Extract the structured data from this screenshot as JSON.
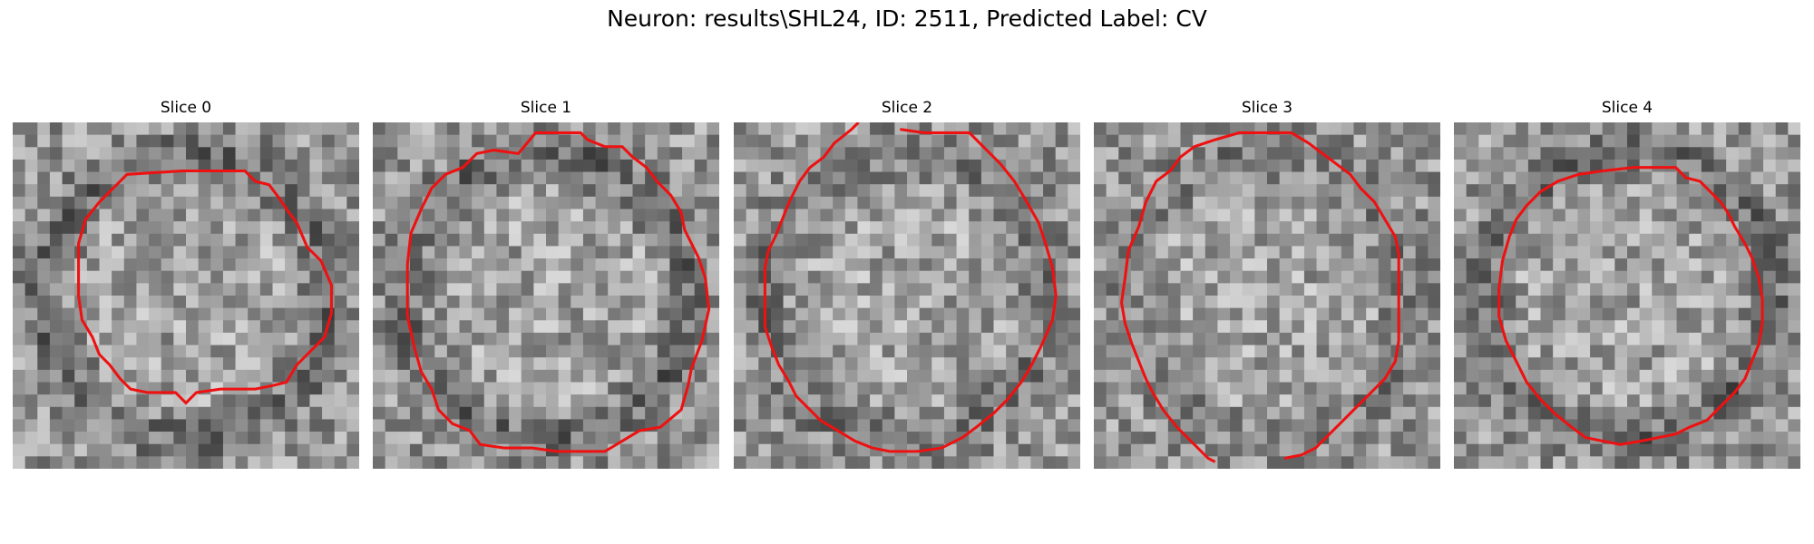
{
  "figure": {
    "title": "Neuron: results\\SHL24, ID: 2511, Predicted Label: CV"
  },
  "panels": [
    {
      "title": "Slice 0",
      "seed": 11,
      "dark_ring": 0.55,
      "contour": [
        [
          9.8,
          2.8
        ],
        [
          13.4,
          2.8
        ],
        [
          14.0,
          3.4
        ],
        [
          14.8,
          3.6
        ],
        [
          15.4,
          4.4
        ],
        [
          15.8,
          5.0
        ],
        [
          16.4,
          5.8
        ],
        [
          17.0,
          7.2
        ],
        [
          17.8,
          8.0
        ],
        [
          18.4,
          9.4
        ],
        [
          18.4,
          11.0
        ],
        [
          18.0,
          12.4
        ],
        [
          17.4,
          13.0
        ],
        [
          16.4,
          14.0
        ],
        [
          15.8,
          15.0
        ],
        [
          15.0,
          15.2
        ],
        [
          14.0,
          15.4
        ],
        [
          12.0,
          15.4
        ],
        [
          10.6,
          15.6
        ],
        [
          10.0,
          16.2
        ],
        [
          9.4,
          15.6
        ],
        [
          7.8,
          15.6
        ],
        [
          6.8,
          15.4
        ],
        [
          6.2,
          14.8
        ],
        [
          5.6,
          14.0
        ],
        [
          5.0,
          13.4
        ],
        [
          4.6,
          12.4
        ],
        [
          4.0,
          11.4
        ],
        [
          3.8,
          10.0
        ],
        [
          3.8,
          7.0
        ],
        [
          4.2,
          5.6
        ],
        [
          5.0,
          4.6
        ],
        [
          5.8,
          3.8
        ],
        [
          6.6,
          3.0
        ]
      ],
      "closed": true
    },
    {
      "title": "Slice 1",
      "seed": 23,
      "dark_ring": 0.6,
      "contour": [
        [
          8.4,
          1.8
        ],
        [
          9.4,
          0.6
        ],
        [
          10.2,
          0.6
        ],
        [
          10.6,
          0.6
        ],
        [
          11.2,
          0.6
        ],
        [
          12.0,
          0.6
        ],
        [
          12.4,
          1.0
        ],
        [
          13.4,
          1.4
        ],
        [
          14.4,
          1.4
        ],
        [
          15.0,
          2.0
        ],
        [
          15.8,
          2.6
        ],
        [
          16.4,
          3.4
        ],
        [
          17.2,
          4.2
        ],
        [
          17.8,
          5.2
        ],
        [
          18.0,
          6.2
        ],
        [
          18.4,
          7.0
        ],
        [
          18.8,
          7.8
        ],
        [
          19.2,
          9.0
        ],
        [
          19.4,
          10.8
        ],
        [
          19.0,
          12.6
        ],
        [
          18.4,
          14.2
        ],
        [
          18.2,
          15.2
        ],
        [
          17.8,
          16.6
        ],
        [
          16.6,
          17.6
        ],
        [
          15.4,
          17.8
        ],
        [
          14.4,
          18.4
        ],
        [
          13.4,
          19.0
        ],
        [
          12.0,
          19.0
        ],
        [
          10.6,
          19.0
        ],
        [
          9.2,
          18.8
        ],
        [
          7.6,
          18.8
        ],
        [
          6.2,
          18.6
        ],
        [
          5.6,
          17.8
        ],
        [
          4.6,
          17.4
        ],
        [
          3.8,
          16.6
        ],
        [
          3.4,
          15.4
        ],
        [
          2.8,
          14.4
        ],
        [
          2.4,
          13.0
        ],
        [
          2.0,
          11.2
        ],
        [
          2.0,
          8.2
        ],
        [
          2.2,
          6.4
        ],
        [
          2.8,
          5.0
        ],
        [
          3.4,
          3.8
        ],
        [
          4.2,
          3.0
        ],
        [
          5.2,
          2.6
        ],
        [
          6.0,
          1.8
        ],
        [
          7.0,
          1.6
        ]
      ],
      "closed": true
    },
    {
      "title": "Slice 2",
      "seed": 37,
      "dark_ring": 0.4,
      "contour": [
        [
          7.2,
          0.0
        ],
        [
          6.8,
          0.4
        ],
        [
          5.8,
          1.2
        ],
        [
          5.2,
          2.0
        ],
        [
          4.4,
          2.6
        ],
        [
          3.8,
          3.4
        ],
        [
          3.2,
          4.6
        ],
        [
          2.8,
          5.6
        ],
        [
          2.4,
          6.6
        ],
        [
          2.0,
          7.4
        ],
        [
          1.8,
          8.4
        ],
        [
          1.8,
          10.4
        ],
        [
          1.8,
          11.8
        ],
        [
          2.2,
          13.0
        ],
        [
          2.6,
          14.0
        ],
        [
          3.2,
          15.0
        ],
        [
          3.6,
          15.8
        ],
        [
          4.2,
          16.4
        ],
        [
          5.0,
          17.2
        ],
        [
          6.0,
          17.8
        ],
        [
          7.0,
          18.4
        ],
        [
          8.0,
          18.8
        ],
        [
          9.0,
          19.0
        ],
        [
          10.6,
          19.0
        ],
        [
          12.0,
          18.8
        ],
        [
          13.2,
          18.2
        ],
        [
          14.0,
          17.6
        ],
        [
          15.0,
          16.8
        ],
        [
          15.8,
          16.0
        ],
        [
          16.6,
          15.0
        ],
        [
          17.2,
          14.0
        ],
        [
          17.8,
          12.8
        ],
        [
          18.4,
          11.4
        ],
        [
          18.6,
          10.0
        ],
        [
          18.4,
          8.4
        ],
        [
          18.0,
          7.0
        ],
        [
          17.6,
          5.8
        ],
        [
          16.8,
          4.4
        ],
        [
          16.2,
          3.4
        ],
        [
          15.4,
          2.4
        ],
        [
          14.4,
          1.4
        ],
        [
          13.6,
          0.6
        ],
        [
          12.4,
          0.6
        ],
        [
          11.0,
          0.6
        ],
        [
          9.6,
          0.4
        ]
      ],
      "closed": false
    },
    {
      "title": "Slice 3",
      "seed": 51,
      "dark_ring": 0.35,
      "contour": [
        [
          7.0,
          19.6
        ],
        [
          6.6,
          19.4
        ],
        [
          5.6,
          18.4
        ],
        [
          4.8,
          17.6
        ],
        [
          4.0,
          16.6
        ],
        [
          3.4,
          15.6
        ],
        [
          3.0,
          14.8
        ],
        [
          2.6,
          13.8
        ],
        [
          2.2,
          12.8
        ],
        [
          1.8,
          11.6
        ],
        [
          1.6,
          10.4
        ],
        [
          1.8,
          9.0
        ],
        [
          2.0,
          7.4
        ],
        [
          2.6,
          6.0
        ],
        [
          3.0,
          4.6
        ],
        [
          3.6,
          3.4
        ],
        [
          4.4,
          2.8
        ],
        [
          5.0,
          2.0
        ],
        [
          5.8,
          1.4
        ],
        [
          7.0,
          1.0
        ],
        [
          8.4,
          0.6
        ],
        [
          10.0,
          0.6
        ],
        [
          11.4,
          0.6
        ],
        [
          12.4,
          1.2
        ],
        [
          13.2,
          1.8
        ],
        [
          14.0,
          2.4
        ],
        [
          14.8,
          3.0
        ],
        [
          15.4,
          3.8
        ],
        [
          16.2,
          4.6
        ],
        [
          16.8,
          5.6
        ],
        [
          17.4,
          6.6
        ],
        [
          17.6,
          7.6
        ],
        [
          17.6,
          9.0
        ],
        [
          17.6,
          10.6
        ],
        [
          17.6,
          12.6
        ],
        [
          17.4,
          13.8
        ],
        [
          16.8,
          14.8
        ],
        [
          16.0,
          15.6
        ],
        [
          15.2,
          16.4
        ],
        [
          14.4,
          17.2
        ],
        [
          13.6,
          18.0
        ],
        [
          12.8,
          18.8
        ],
        [
          12.0,
          19.2
        ],
        [
          11.0,
          19.4
        ]
      ],
      "closed": false
    },
    {
      "title": "Slice 4",
      "seed": 67,
      "dark_ring": 0.6,
      "contour": [
        [
          10.4,
          2.6
        ],
        [
          12.8,
          2.6
        ],
        [
          13.4,
          3.2
        ],
        [
          14.2,
          3.4
        ],
        [
          14.8,
          4.0
        ],
        [
          15.4,
          4.6
        ],
        [
          15.8,
          5.2
        ],
        [
          16.2,
          6.0
        ],
        [
          16.8,
          7.0
        ],
        [
          17.2,
          7.8
        ],
        [
          17.6,
          9.0
        ],
        [
          17.8,
          10.2
        ],
        [
          17.8,
          11.6
        ],
        [
          17.6,
          12.8
        ],
        [
          17.2,
          13.8
        ],
        [
          16.8,
          14.8
        ],
        [
          16.2,
          15.6
        ],
        [
          15.4,
          16.4
        ],
        [
          14.6,
          17.2
        ],
        [
          13.6,
          17.6
        ],
        [
          12.8,
          18.0
        ],
        [
          11.8,
          18.2
        ],
        [
          10.8,
          18.4
        ],
        [
          9.6,
          18.6
        ],
        [
          8.6,
          18.4
        ],
        [
          7.6,
          18.2
        ],
        [
          6.8,
          17.6
        ],
        [
          5.8,
          16.8
        ],
        [
          5.0,
          16.0
        ],
        [
          4.2,
          15.0
        ],
        [
          3.6,
          13.8
        ],
        [
          3.0,
          12.6
        ],
        [
          2.6,
          11.2
        ],
        [
          2.6,
          9.6
        ],
        [
          2.8,
          8.0
        ],
        [
          3.2,
          6.6
        ],
        [
          3.6,
          5.6
        ],
        [
          4.2,
          4.8
        ],
        [
          5.0,
          4.0
        ],
        [
          6.0,
          3.4
        ],
        [
          7.2,
          3.0
        ],
        [
          8.6,
          2.8
        ]
      ],
      "closed": true
    }
  ]
}
